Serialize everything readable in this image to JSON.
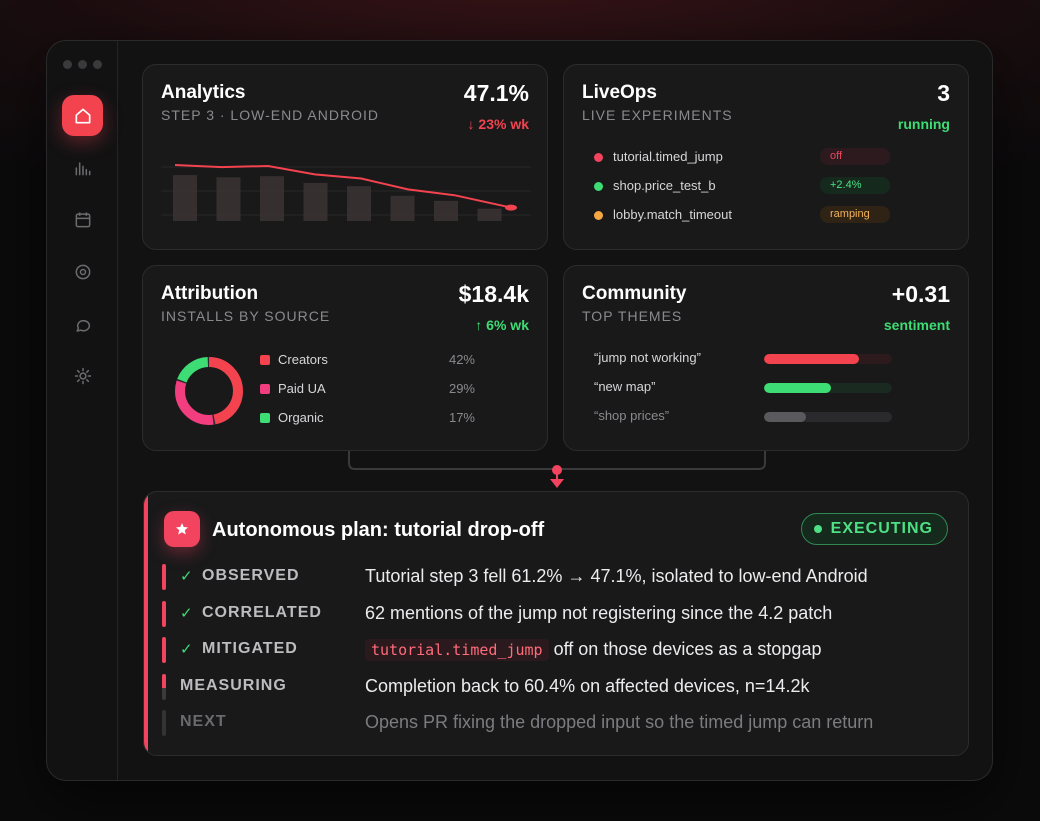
{
  "nav": [
    "home-icon",
    "chart-icon",
    "calendar-icon",
    "target-icon",
    "chat-icon",
    "settings-icon"
  ],
  "analytics": {
    "title": "Analytics",
    "subtitle": "STEP 3 · LOW-END ANDROID",
    "metric": "47.1%",
    "delta": "↓ 23% wk",
    "chart_data": {
      "type": "bar",
      "bars": [
        0.82,
        0.78,
        0.8,
        0.68,
        0.62,
        0.45,
        0.36,
        0.22
      ],
      "line": [
        1.0,
        0.96,
        0.98,
        0.82,
        0.74,
        0.53,
        0.42,
        0.18
      ]
    }
  },
  "liveops": {
    "title": "LiveOps",
    "subtitle": "LIVE EXPERIMENTS",
    "metric": "3",
    "delta": "running",
    "experiments": [
      {
        "name": "tutorial.timed_jump",
        "status": "off",
        "color": "#f2435f",
        "pill_bg": "#2c1a1e",
        "pill_fg": "#f2435f"
      },
      {
        "name": "shop.price_test_b",
        "status": "+2.4%",
        "color": "#3ddc74",
        "pill_bg": "#15291d",
        "pill_fg": "#4ee084"
      },
      {
        "name": "lobby.match_timeout",
        "status": "ramping",
        "color": "#f5a742",
        "pill_bg": "#2e2314",
        "pill_fg": "#f5b25a"
      }
    ]
  },
  "attribution": {
    "title": "Attribution",
    "subtitle": "INSTALLS BY SOURCE",
    "metric": "$18.4k",
    "delta": "↑ 6% wk",
    "sources": [
      {
        "name": "Creators",
        "pct": "42%",
        "value": 42,
        "color": "#f2434f"
      },
      {
        "name": "Paid UA",
        "pct": "29%",
        "value": 29,
        "color": "#f23d7e"
      },
      {
        "name": "Organic",
        "pct": "17%",
        "value": 17,
        "color": "#3ddc74"
      }
    ]
  },
  "community": {
    "title": "Community",
    "subtitle": "TOP THEMES",
    "metric": "+0.31",
    "delta": "sentiment",
    "themes": [
      {
        "name": "“jump not working”",
        "level": 0.74,
        "color": "#f2434f",
        "track": "#2c1a1d"
      },
      {
        "name": "“new map”",
        "level": 0.52,
        "color": "#3ddc74",
        "track": "#1a2a20"
      },
      {
        "name": "“shop prices”",
        "level": 0.33,
        "color": "#5a5a5e",
        "track": "#2a2a2c"
      }
    ]
  },
  "plan": {
    "title": "Autonomous plan: tutorial drop-off",
    "status": "EXECUTING",
    "steps": [
      {
        "label": "OBSERVED",
        "done": true,
        "desc": "Tutorial step 3 fell 61.2% → 47.1%, isolated to low-end Android"
      },
      {
        "label": "CORRELATED",
        "done": true,
        "desc": "62 mentions of the jump not registering since the 4.2 patch"
      },
      {
        "label": "MITIGATED",
        "done": true,
        "flag": "tutorial.timed_jump",
        "desc": "off on those devices as a stopgap"
      },
      {
        "label": "MEASURING",
        "done": false,
        "desc": "Completion back to 60.4% on affected devices, n=14.2k"
      },
      {
        "label": "NEXT",
        "done": false,
        "desc": "Opens PR fixing the dropped input so the timed jump can return"
      }
    ]
  }
}
